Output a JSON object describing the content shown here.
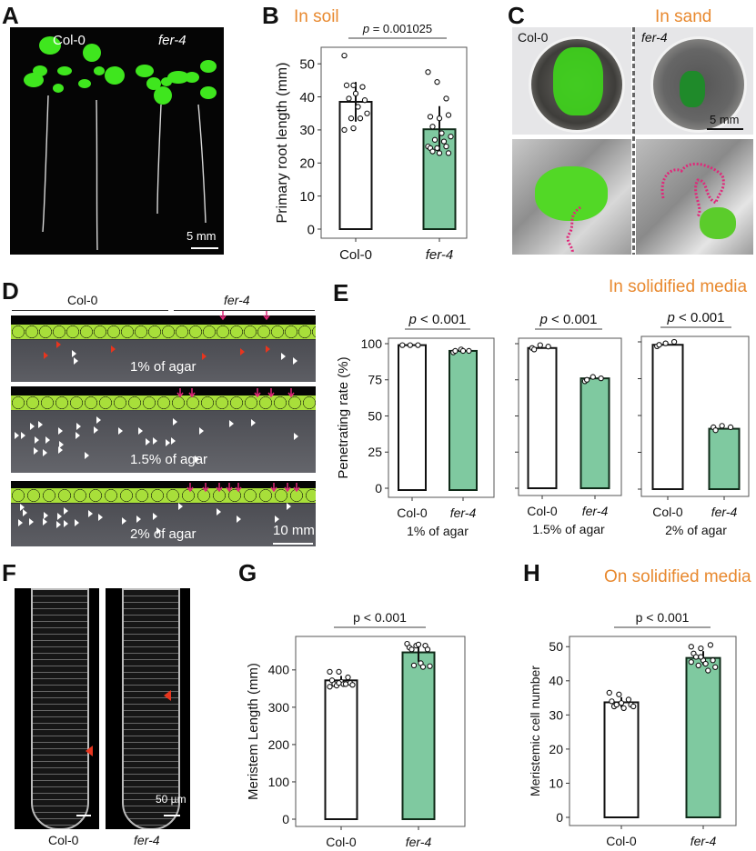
{
  "figure": {
    "panels": {
      "A": {
        "label": "A",
        "left_label": "Col-0",
        "right_label": "fer-4",
        "scale_bar": "5 mm"
      },
      "B": {
        "label": "B",
        "condition": "In soil"
      },
      "C": {
        "label": "C",
        "condition": "In sand",
        "left_label": "Col-0",
        "right_label": "fer-4",
        "scale_bar": "5 mm"
      },
      "D": {
        "label": "D",
        "left_label": "Col-0",
        "right_label": "fer-4",
        "rows": [
          {
            "label": "1% of agar"
          },
          {
            "label": "1.5% of agar"
          },
          {
            "label": "2% of agar"
          }
        ],
        "scale_bar": "10 mm"
      },
      "E": {
        "label": "E",
        "condition": "In solidified media"
      },
      "F": {
        "label": "F",
        "left_label": "Col-0",
        "right_label": "fer-4",
        "scale_bar": "50 µm"
      },
      "G": {
        "label": "G"
      },
      "H": {
        "label": "H",
        "condition": "On solidified media"
      }
    },
    "colors": {
      "mutant_bar": "#7FC9A0",
      "wt_bar": "#FFFFFF",
      "accent_text": "#E8892F",
      "arrow": "#E0287A",
      "arrowhead_red": "#E8351E"
    }
  },
  "chart_data": [
    {
      "id": "B",
      "type": "bar",
      "title": "In soil",
      "categories": [
        "Col-0",
        "fer-4"
      ],
      "values": [
        38.5,
        30.2
      ],
      "error": [
        6.0,
        7.0
      ],
      "points": [
        [
          52.5,
          43.5,
          43,
          43.5,
          41,
          39,
          39.5,
          37,
          35,
          33.5,
          33.5,
          30,
          30.5
        ],
        [
          47.5,
          44.5,
          39.5,
          34,
          33.5,
          34.5,
          31,
          29,
          28,
          27,
          26.5,
          25,
          24.5,
          25,
          24.5,
          23,
          23,
          23.5
        ]
      ],
      "xlabel": "",
      "ylabel": "Primary root length (mm)",
      "ylim": [
        0,
        55
      ],
      "yticks": [
        0,
        10,
        20,
        30,
        40,
        50
      ],
      "annotation": "p = 0.001025"
    },
    {
      "id": "E1",
      "type": "bar",
      "subtitle": "1% of agar",
      "categories": [
        "Col-0",
        "fer-4"
      ],
      "values": [
        99,
        95
      ],
      "points": [
        [
          99,
          99,
          99
        ],
        [
          94,
          96,
          95,
          95,
          95
        ]
      ],
      "ylabel": "Penetrating rate (%)",
      "ylim": [
        0,
        100
      ],
      "yticks": [
        0,
        25,
        50,
        75,
        100
      ],
      "annotation": "p < 0.001"
    },
    {
      "id": "E2",
      "type": "bar",
      "subtitle": "1.5% of agar",
      "categories": [
        "Col-0",
        "fer-4"
      ],
      "values": [
        97,
        76
      ],
      "points": [
        [
          97,
          99,
          98,
          96
        ],
        [
          74,
          77,
          76,
          75
        ]
      ],
      "ylabel": "",
      "ylim": [
        0,
        100
      ],
      "annotation": "p < 0.001"
    },
    {
      "id": "E3",
      "type": "bar",
      "subtitle": "2% of agar",
      "categories": [
        "Col-0",
        "fer-4"
      ],
      "values": [
        98,
        41
      ],
      "points": [
        [
          97,
          99,
          100,
          98
        ],
        [
          42,
          43,
          42,
          40
        ]
      ],
      "ylabel": "",
      "ylim": [
        0,
        100
      ],
      "annotation": "p < 0.001"
    },
    {
      "id": "G",
      "type": "bar",
      "categories": [
        "Col-0",
        "fer-4"
      ],
      "values": [
        372,
        447
      ],
      "error": [
        12,
        25
      ],
      "points": [
        [
          395,
          395,
          380,
          372,
          368,
          365,
          362,
          362,
          360,
          358,
          362,
          355,
          365
        ],
        [
          470,
          465,
          465,
          460,
          468,
          455,
          455,
          418,
          410,
          412,
          408
        ]
      ],
      "ylabel": "Meristem Length (mm)",
      "ylim": [
        0,
        480
      ],
      "yticks": [
        0,
        100,
        200,
        300,
        400
      ],
      "annotation": "p < 0.001"
    },
    {
      "id": "H",
      "type": "bar",
      "title": "On solidified media",
      "categories": [
        "Col-0",
        "fer-4"
      ],
      "values": [
        33.7,
        46.7
      ],
      "error": [
        1.5,
        2.0
      ],
      "points": [
        [
          36.5,
          36,
          34.5,
          34,
          33.5,
          33,
          32.5,
          32,
          32.5,
          33
        ],
        [
          50,
          49.5,
          50.5,
          48,
          46,
          46,
          47,
          45,
          44,
          44.5,
          43,
          45.5,
          47
        ]
      ],
      "ylabel": "Meristemic cell number",
      "ylim": [
        0,
        53
      ],
      "yticks": [
        0,
        10,
        20,
        30,
        40,
        50
      ],
      "annotation": "p < 0.001"
    }
  ]
}
